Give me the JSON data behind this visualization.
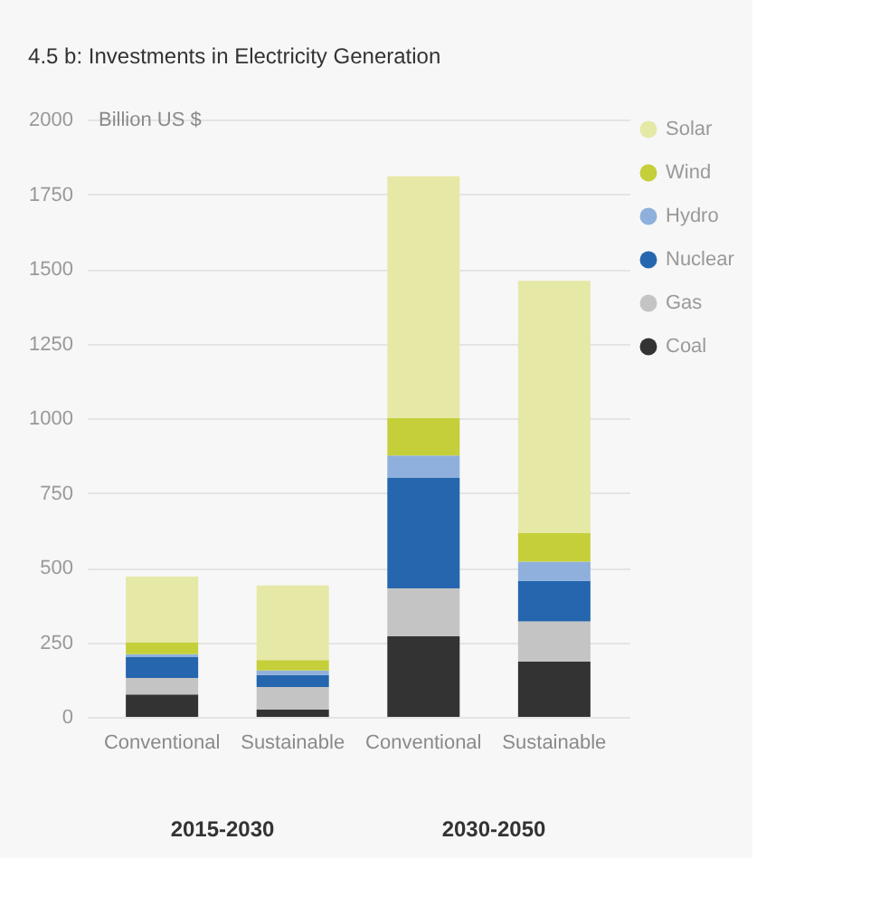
{
  "chart_data": {
    "type": "bar",
    "title": "4.5 b: Investments in Electricity Generation",
    "ylabel": "Billion US $",
    "categories": [
      "Conventional",
      "Sustainable",
      "Conventional",
      "Sustainable"
    ],
    "annotations": [
      "2015-2030",
      "2030-2050"
    ],
    "stacked": true,
    "series": [
      {
        "name": "Coal",
        "color": "#333333",
        "values": [
          75,
          25,
          270,
          185
        ]
      },
      {
        "name": "Gas",
        "color": "#c4c4c4",
        "values": [
          55,
          75,
          160,
          135
        ]
      },
      {
        "name": "Nuclear",
        "color": "#2566ae",
        "values": [
          70,
          40,
          370,
          135
        ]
      },
      {
        "name": "Hydro",
        "color": "#8fb0dc",
        "values": [
          10,
          15,
          75,
          65
        ]
      },
      {
        "name": "Wind",
        "color": "#c5cf3a",
        "values": [
          40,
          35,
          125,
          95
        ]
      },
      {
        "name": "Solar",
        "color": "#e6e8a6",
        "values": [
          220,
          250,
          810,
          845
        ]
      }
    ],
    "ylim": [
      0,
      2000
    ],
    "yticks": [
      0,
      250,
      500,
      750,
      1000,
      1250,
      1500,
      1750,
      2000
    ],
    "grid": "y",
    "legend": "right"
  }
}
